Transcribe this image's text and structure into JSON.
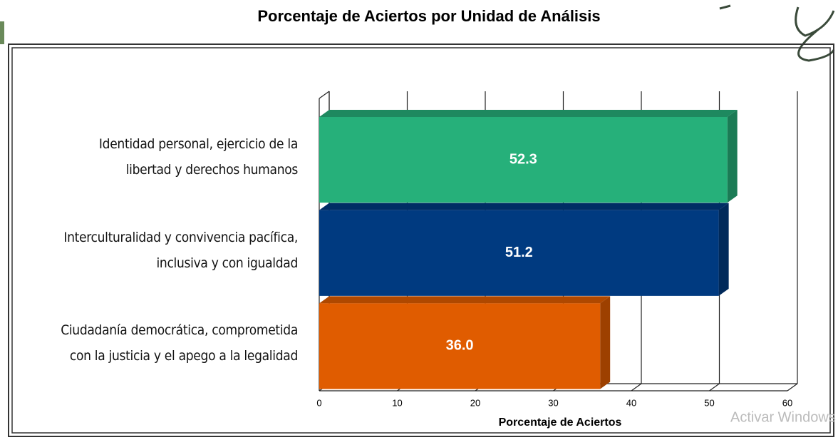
{
  "chart_data": {
    "type": "barh",
    "title": "Porcentaje de Aciertos por Unidad de Análisis",
    "xlabel": "Porcentaje de Aciertos",
    "categories": [
      "Identidad personal, ejercicio de la libertad y derechos humanos",
      "Interculturalidad y convivencia pacífica, inclusiva y con igualdad",
      "Ciudadanía democrática, comprometida con la justicia y el apego a la legalidad"
    ],
    "values": [
      52.3,
      51.2,
      36.0
    ],
    "value_labels": [
      "52.3",
      "51.2",
      "36.0"
    ],
    "colors": [
      "#26b07a",
      "#003a80",
      "#e05c00"
    ],
    "xlim": [
      0,
      60
    ],
    "xticks": [
      0,
      10,
      20,
      30,
      40,
      50,
      60
    ],
    "grid": true
  },
  "watermark": "Activar Windows"
}
